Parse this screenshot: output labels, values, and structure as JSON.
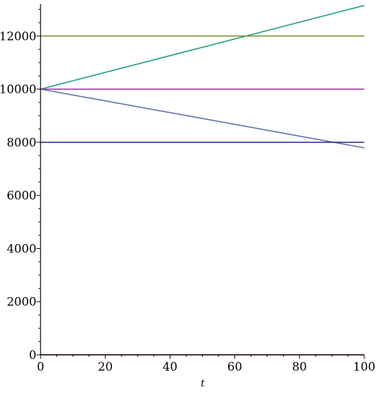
{
  "chart_data": {
    "type": "line",
    "title": "",
    "xlabel": "t",
    "ylabel": "",
    "xlim": [
      0,
      100
    ],
    "ylim": [
      0,
      13200
    ],
    "grid": false,
    "x_ticks": [
      0,
      20,
      40,
      60,
      80,
      100
    ],
    "y_ticks": [
      0,
      2000,
      4000,
      6000,
      8000,
      10000,
      12000
    ],
    "series": [
      {
        "color": "#1e9a8a",
        "x": [
          0,
          100
        ],
        "y": [
          10000,
          13150
        ],
        "kind": "increasing"
      },
      {
        "color": "#6b8e23",
        "x": [
          0,
          100
        ],
        "y": [
          12000,
          12000
        ],
        "kind": "constant"
      },
      {
        "color": "#a020a0",
        "x": [
          0,
          100
        ],
        "y": [
          10000,
          10000
        ],
        "kind": "constant"
      },
      {
        "color": "#5b6fa8",
        "x": [
          0,
          100
        ],
        "y": [
          10000,
          7790
        ],
        "kind": "decreasing"
      },
      {
        "color": "#2b2fa0",
        "x": [
          0,
          100
        ],
        "y": [
          8000,
          8000
        ],
        "kind": "constant"
      },
      {
        "color": "#800000",
        "x": [
          0,
          100
        ],
        "y": [
          0,
          0
        ],
        "kind": "constant"
      }
    ]
  }
}
